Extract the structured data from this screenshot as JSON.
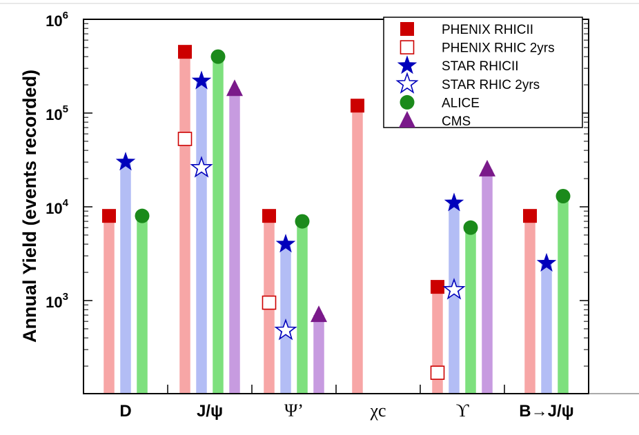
{
  "chart_data": {
    "type": "bar",
    "log_scale_y": true,
    "ylim": [
      100,
      1000000
    ],
    "ylabel": "Annual Yield (events recorded)",
    "xlabel": "",
    "title": "",
    "y_ticks": [
      {
        "base": "10",
        "exp": "3",
        "value": 1000
      },
      {
        "base": "10",
        "exp": "4",
        "value": 10000
      },
      {
        "base": "10",
        "exp": "5",
        "value": 100000
      },
      {
        "base": "10",
        "exp": "6",
        "value": 1000000
      }
    ],
    "categories": [
      {
        "label": "D",
        "style": "sans"
      },
      {
        "label": "J/ψ",
        "style": "sans"
      },
      {
        "label": "Ψ’",
        "style": "serif"
      },
      {
        "label": "χc",
        "style": "serif"
      },
      {
        "label": "ϒ",
        "style": "serif"
      },
      {
        "label": "B→J/ψ",
        "style": "sans"
      }
    ],
    "legend_position": "top-right",
    "series": [
      {
        "name": "PHENIX RHICII",
        "marker": "square-filled",
        "color": "#cc0000",
        "bar_color": "#f7a6a6",
        "values": [
          8000,
          450000,
          8000,
          120000,
          1400,
          8000
        ]
      },
      {
        "name": "PHENIX RHIC 2yrs",
        "marker": "square-open",
        "color": "#cc0000",
        "bar_color": null,
        "values": [
          null,
          53000,
          950,
          null,
          170,
          null
        ]
      },
      {
        "name": "STAR RHICII",
        "marker": "star-filled",
        "color": "#0000bb",
        "bar_color": "#b3bdf5",
        "values": [
          30000,
          220000,
          4000,
          null,
          11000,
          2500
        ]
      },
      {
        "name": "STAR RHIC 2yrs",
        "marker": "star-open",
        "color": "#0000bb",
        "bar_color": null,
        "values": [
          null,
          26000,
          480,
          null,
          1300,
          null
        ]
      },
      {
        "name": "ALICE",
        "marker": "circle-filled",
        "color": "#1b8a1b",
        "bar_color": "#7ee07e",
        "values": [
          8000,
          400000,
          7000,
          null,
          6000,
          13000
        ]
      },
      {
        "name": "CMS",
        "marker": "triangle-filled",
        "color": "#7a1a8a",
        "bar_color": "#c79be0",
        "values": [
          null,
          180000,
          700,
          null,
          25000,
          null
        ]
      }
    ]
  }
}
